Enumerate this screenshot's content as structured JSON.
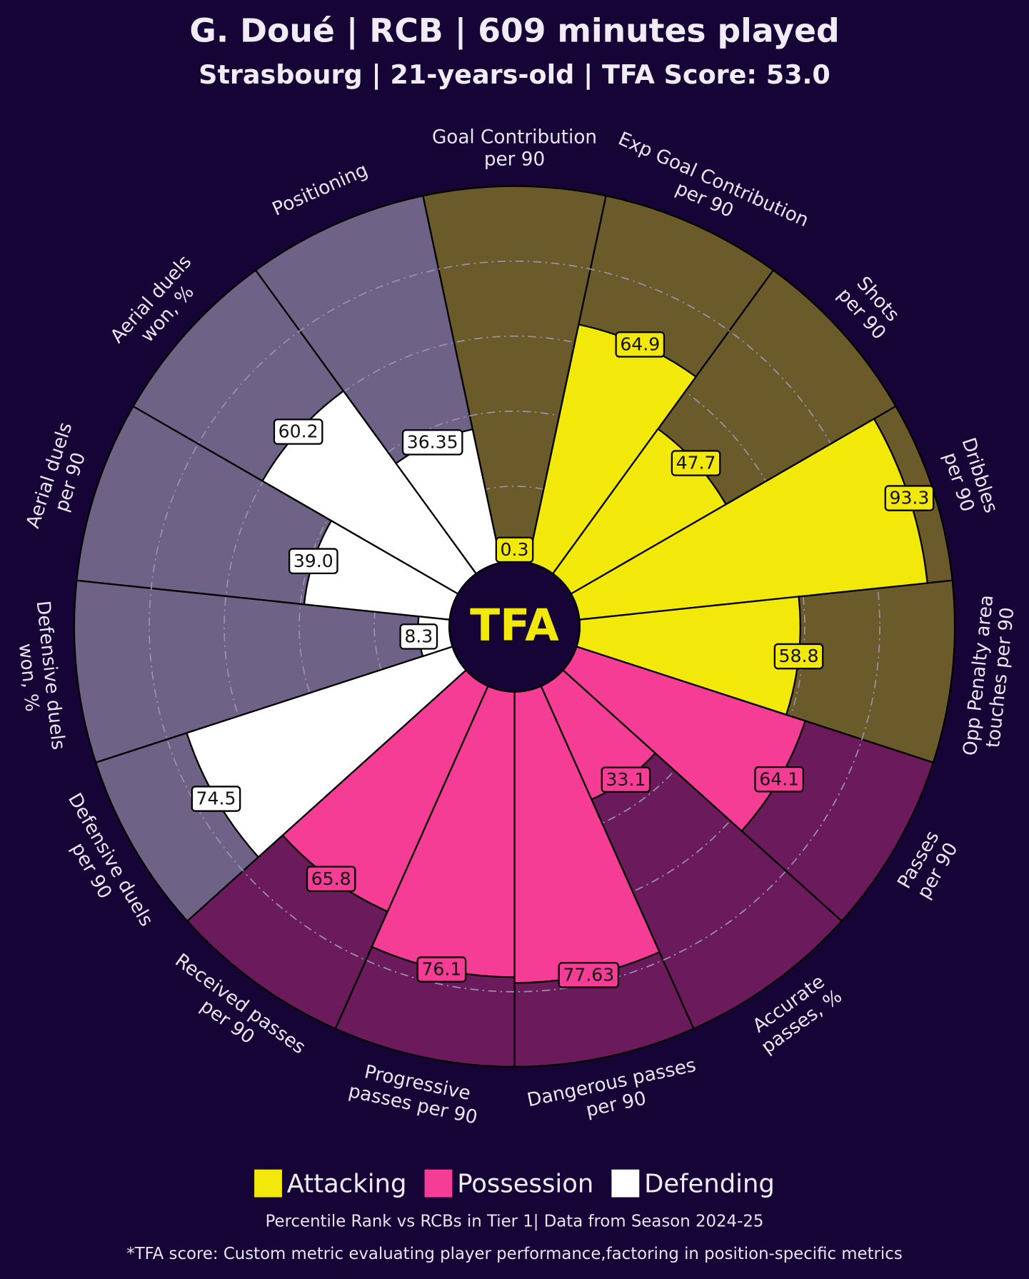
{
  "chart_data": {
    "type": "pizza",
    "title": "G. Doué | RCB | 609 minutes played",
    "subtitle": "Strasbourg | 21-years-old | TFA Score: 53.0",
    "logo": "TFA",
    "footnote": "Percentile Rank vs RCBs in Tier 1| Data from Season 2024-25",
    "note": "*TFA score: Custom metric evaluating player performance,factoring in position-specific metrics",
    "rlim": [
      0,
      100
    ],
    "rticks": [
      20,
      40,
      60,
      80
    ],
    "series": [
      {
        "name": "Attacking",
        "color": "#f2e90a",
        "background": "#6b5a2a",
        "categories": [
          [
            "Goal Contribution",
            "per 90"
          ],
          [
            "Exp Goal Contribution",
            "per 90"
          ],
          [
            "Shots",
            "per 90"
          ],
          [
            "Dribbles",
            "per 90"
          ],
          [
            "Opp Penalty area",
            "touches per 90"
          ]
        ],
        "values": [
          0.3,
          64.9,
          47.7,
          93.3,
          58.8
        ]
      },
      {
        "name": "Possession",
        "color": "#f53d96",
        "background": "#6b1a5c",
        "categories": [
          [
            "Passes",
            "per 90"
          ],
          [
            "Accurate",
            "passes, %"
          ],
          [
            "Dangerous passes",
            "per 90"
          ],
          [
            "Progressive",
            "passes per 90"
          ],
          [
            "Received passes",
            "per 90"
          ]
        ],
        "values": [
          64.1,
          33.1,
          77.63,
          76.1,
          65.8
        ]
      },
      {
        "name": "Defending",
        "color": "#ffffff",
        "background": "#6e6386",
        "categories": [
          [
            "Defensive duels",
            "per 90"
          ],
          [
            "Defensive duels",
            "won, %"
          ],
          [
            "Aerial duels",
            "per 90"
          ],
          [
            "Aerial duels",
            "won, %"
          ],
          [
            "Positioning"
          ]
        ],
        "values": [
          74.5,
          8.3,
          39,
          60.2,
          36.35
        ],
        "value_labels": [
          "74.5",
          "8.3",
          "39.0",
          "60.2",
          "36.35"
        ]
      }
    ]
  }
}
